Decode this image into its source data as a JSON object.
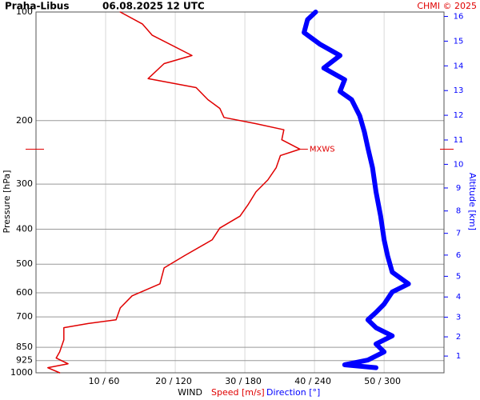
{
  "chart_data": {
    "type": "line",
    "title": "Praha-Libus",
    "subtitle": "06.08.2025 12 UTC",
    "credit": "CHMI © 2025",
    "y_label": "Pressure [hPa]",
    "y2_label": "Altitude [km]",
    "x_label": "WIND",
    "log_y": true,
    "grid": true,
    "ylim": [
      100,
      1000
    ],
    "yticks": [
      100,
      200,
      300,
      400,
      500,
      600,
      700,
      850,
      925,
      1000
    ],
    "xlim": [
      0,
      58.6
    ],
    "x2lim": [
      0,
      351.6
    ],
    "xticks": [
      {
        "value": 10,
        "label": "10 / 60"
      },
      {
        "value": 20,
        "label": "20 / 120"
      },
      {
        "value": 30,
        "label": "30 / 180"
      },
      {
        "value": 40,
        "label": "40 / 240"
      },
      {
        "value": 50,
        "label": "50 / 300"
      }
    ],
    "y2ticks": [
      1,
      2,
      3,
      4,
      5,
      6,
      7,
      8,
      9,
      10,
      11,
      12,
      13,
      14,
      15,
      16
    ],
    "annotation": {
      "text": "MXWS",
      "pressure": 240,
      "value": 37.9
    },
    "series": [
      {
        "name": "Speed [m/s]",
        "color": "#e00000",
        "axis": "x",
        "pressure": [
          100,
          108,
          116,
          132,
          139,
          153,
          162,
          175,
          185,
          196,
          204,
          212,
          226,
          240,
          250,
          270,
          292,
          315,
          341,
          368,
          397,
          428,
          474,
          512,
          567,
          612,
          661,
          713,
          730,
          750,
          810,
          875,
          910,
          944,
          968,
          1000
        ],
        "values": [
          12.1,
          15.3,
          16.7,
          22.4,
          18.4,
          16.1,
          23,
          24.7,
          26.4,
          27,
          31.6,
          35.6,
          35.3,
          37.9,
          35.1,
          34.5,
          33.3,
          31.6,
          30.5,
          29.3,
          26.4,
          25.3,
          21.3,
          18.4,
          17.8,
          13.8,
          12.1,
          11.5,
          7.5,
          4,
          4,
          3.4,
          2.9,
          4.6,
          1.7,
          3.4
        ]
      },
      {
        "name": "Direction [°]",
        "color": "#0000ff",
        "axis": "x2",
        "pressure": [
          100,
          105,
          114,
          123,
          132,
          143,
          154,
          166,
          175,
          194,
          215,
          238,
          270,
          315,
          368,
          428,
          474,
          526,
          567,
          597,
          645,
          680,
          713,
          750,
          790,
          832,
          875,
          922,
          950,
          968
        ],
        "values": [
          241,
          234,
          231,
          245,
          262,
          248,
          266,
          262,
          272,
          279,
          283,
          286,
          290,
          293,
          297,
          300,
          303,
          307,
          321,
          307,
          300,
          293,
          286,
          293,
          307,
          293,
          300,
          286,
          266,
          293
        ]
      }
    ]
  }
}
